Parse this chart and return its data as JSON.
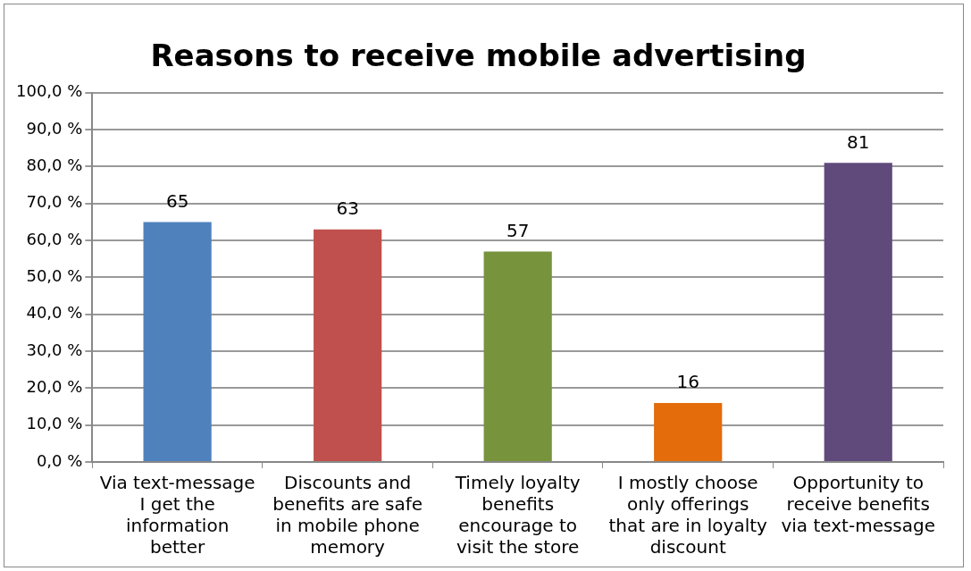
{
  "chart_data": {
    "type": "bar",
    "title": "Reasons to receive mobile advertising",
    "categories": [
      "Via text-message I get the information better",
      "Discounts and benefits are safe in mobile phone memory",
      "Timely loyalty benefits encourage to visit the store",
      "I mostly choose only offerings that are in loyalty discount",
      "Opportunity to receive benefits via text-message"
    ],
    "values": [
      65,
      63,
      57,
      16,
      81
    ],
    "colors": [
      "#4f81bd",
      "#c0504d",
      "#77933c",
      "#e46c0a",
      "#604a7b"
    ],
    "data_labels": true,
    "ylim": [
      0,
      100
    ],
    "yticks": [
      {
        "value": 0,
        "label": "0,0 %"
      },
      {
        "value": 10,
        "label": "10,0 %"
      },
      {
        "value": 20,
        "label": "20,0 %"
      },
      {
        "value": 30,
        "label": "30,0 %"
      },
      {
        "value": 40,
        "label": "40,0 %"
      },
      {
        "value": 50,
        "label": "50,0 %"
      },
      {
        "value": 60,
        "label": "60,0 %"
      },
      {
        "value": 70,
        "label": "70,0 %"
      },
      {
        "value": 80,
        "label": "80,0 %"
      },
      {
        "value": 90,
        "label": "90,0 %"
      },
      {
        "value": 100,
        "label": "100,0 %"
      }
    ],
    "grid": "y",
    "legend": false
  }
}
